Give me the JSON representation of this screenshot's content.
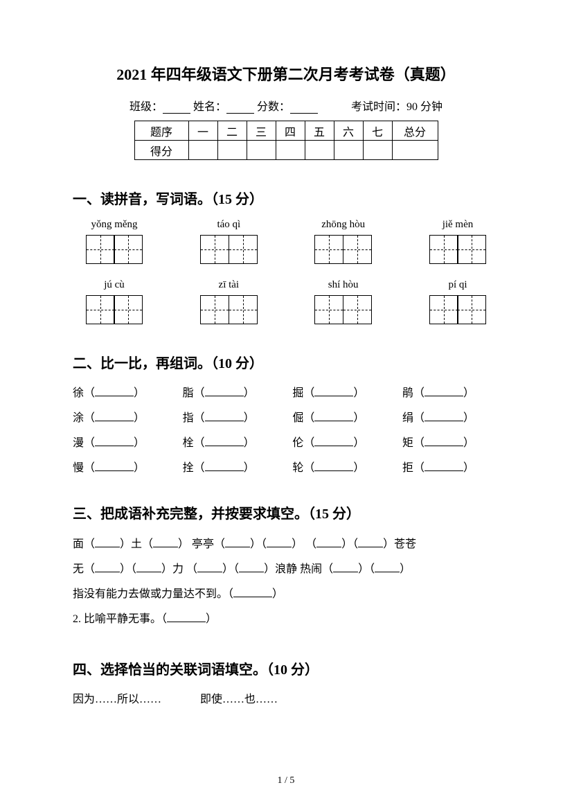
{
  "title": "2021 年四年级语文下册第二次月考考试卷（真题）",
  "info": {
    "class_label": "班级：",
    "name_label": "姓名：",
    "score_label": "分数：",
    "time_label": "考试时间：90 分钟"
  },
  "score_table": {
    "row1_label": "题序",
    "cols": [
      "一",
      "二",
      "三",
      "四",
      "五",
      "六",
      "七"
    ],
    "total_label": "总分",
    "row2_label": "得分"
  },
  "section1": {
    "heading": "一、读拼音，写词语。（15 分）",
    "row1": [
      "yǒng měng",
      "táo qì",
      "zhōng hòu",
      "jiě mèn"
    ],
    "row2": [
      "jú  cù",
      "zī tài",
      "shí hòu",
      "pí qi"
    ]
  },
  "section2": {
    "heading": "二、比一比，再组词。（10 分）",
    "rows": [
      [
        "徐（",
        "脂（",
        "掘（",
        "鹃（"
      ],
      [
        "涂（",
        "指（",
        "倔（",
        "绢（"
      ],
      [
        "漫（",
        "栓（",
        "伦（",
        "矩（"
      ],
      [
        "慢（",
        "拴（",
        "轮（",
        "拒（"
      ]
    ],
    "close": "）"
  },
  "section3": {
    "heading": "三、把成语补充完整，并按要求填空。（15 分）",
    "line1_a": "面（",
    "line1_b": "）土（",
    "line1_c": "）  亭亭（",
    "line1_d": "）（",
    "line1_e": "）  （",
    "line1_f": "）（",
    "line1_g": "）苍苍",
    "line2_a": "无（",
    "line2_b": "）（",
    "line2_c": "）力  （",
    "line2_d": "）（",
    "line2_e": "）浪静  热闹（",
    "line2_f": "）（",
    "line2_g": "）",
    "line3_a": "指没有能力去做或力量达不到。（",
    "line3_b": "）",
    "line4_a": "2. 比喻平静无事。（",
    "line4_b": "）"
  },
  "section4": {
    "heading": "四、选择恰当的关联词语填空。（10 分）",
    "opt1": "因为……所以……",
    "opt2": "即使……也……"
  },
  "page_num": "1 / 5"
}
